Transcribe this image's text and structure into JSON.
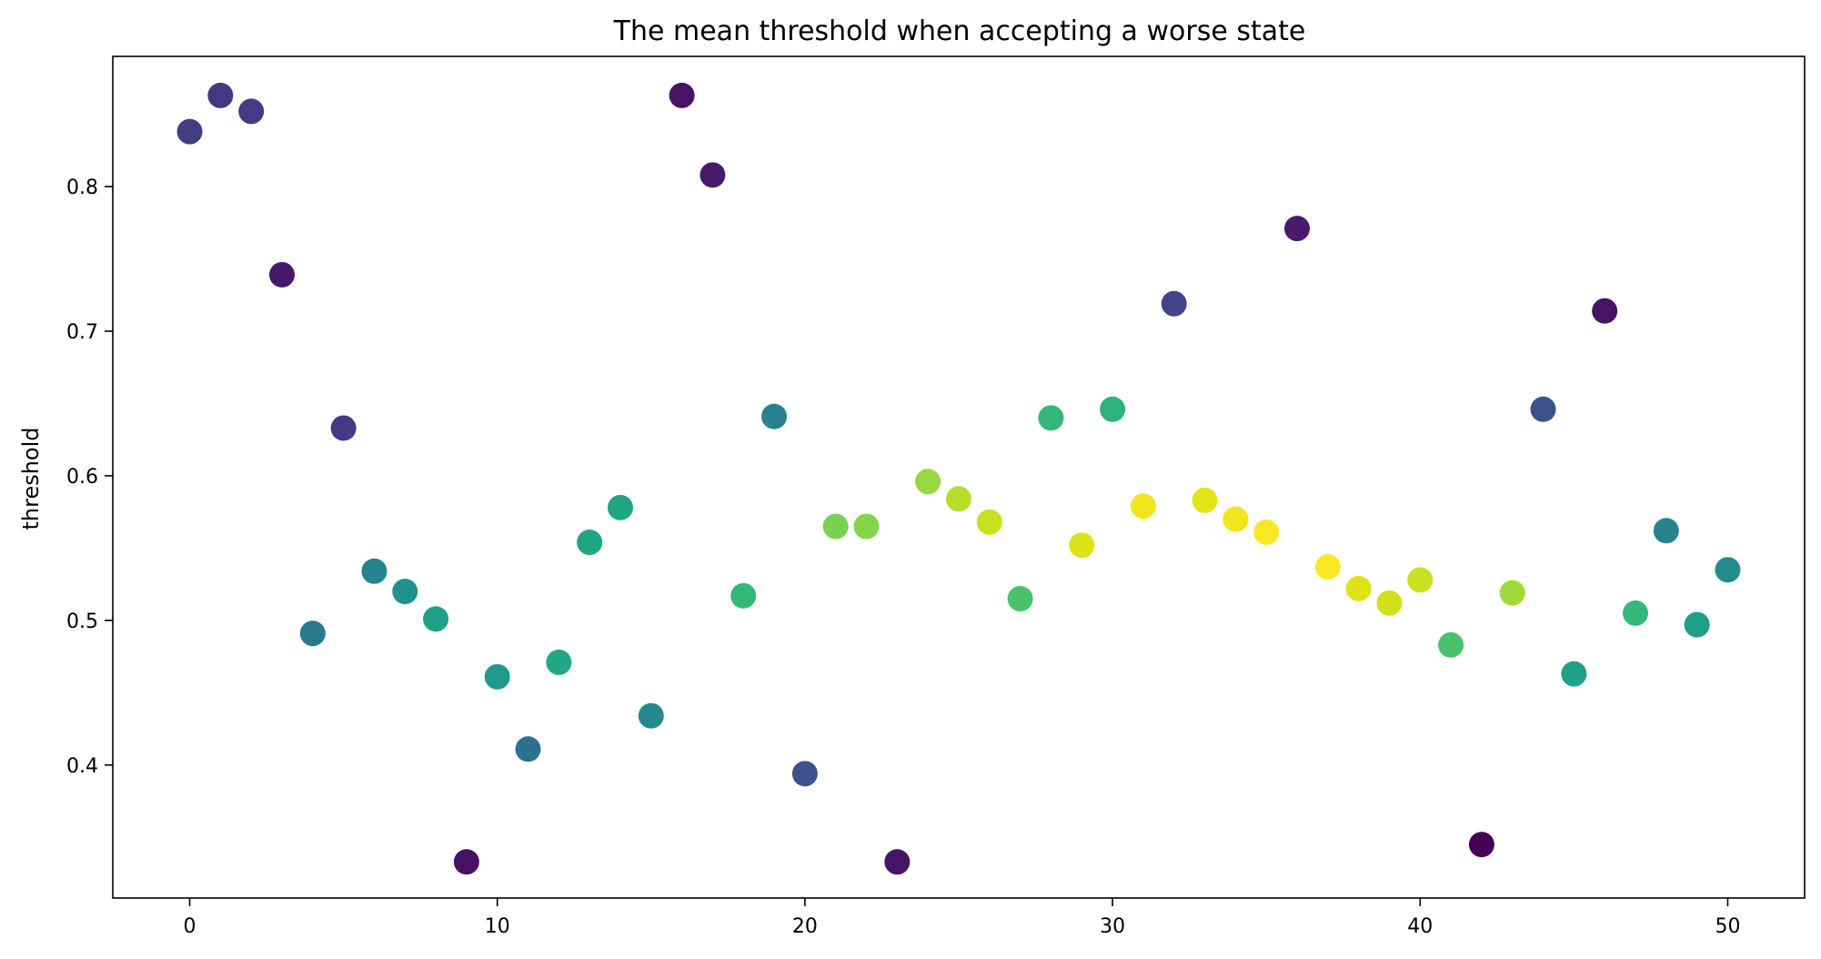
{
  "chart_data": {
    "type": "scatter",
    "title": "The mean threshold when accepting a worse state",
    "xlabel": "",
    "ylabel": "threshold",
    "xlim": [
      -2.5,
      52.5
    ],
    "ylim": [
      0.308,
      0.89
    ],
    "xticks": [
      0,
      10,
      20,
      30,
      40,
      50
    ],
    "yticks": [
      0.4,
      0.5,
      0.6,
      0.7,
      0.8
    ],
    "xtick_labels": [
      "0",
      "10",
      "20",
      "30",
      "40",
      "50"
    ],
    "ytick_labels": [
      "0.4",
      "0.5",
      "0.6",
      "0.7",
      "0.8"
    ],
    "grid": false,
    "colormap": "viridis",
    "color_encoding": "color encodes closeness of y to 0.58 (yellow = close, purple = far)",
    "points": [
      {
        "x": 0,
        "y": 0.838,
        "color": "#433d84"
      },
      {
        "x": 1,
        "y": 0.863,
        "color": "#453781"
      },
      {
        "x": 2,
        "y": 0.852,
        "color": "#443b84"
      },
      {
        "x": 3,
        "y": 0.739,
        "color": "#48186a"
      },
      {
        "x": 4,
        "y": 0.491,
        "color": "#2a788e"
      },
      {
        "x": 5,
        "y": 0.633,
        "color": "#443983"
      },
      {
        "x": 6,
        "y": 0.534,
        "color": "#25848e"
      },
      {
        "x": 7,
        "y": 0.52,
        "color": "#21918c"
      },
      {
        "x": 8,
        "y": 0.501,
        "color": "#1fa188"
      },
      {
        "x": 9,
        "y": 0.333,
        "color": "#471164"
      },
      {
        "x": 10,
        "y": 0.461,
        "color": "#1f9a8a"
      },
      {
        "x": 11,
        "y": 0.411,
        "color": "#2c728e"
      },
      {
        "x": 12,
        "y": 0.471,
        "color": "#22a884"
      },
      {
        "x": 13,
        "y": 0.554,
        "color": "#21a685"
      },
      {
        "x": 14,
        "y": 0.578,
        "color": "#20a486"
      },
      {
        "x": 15,
        "y": 0.434,
        "color": "#23898e"
      },
      {
        "x": 16,
        "y": 0.863,
        "color": "#471365"
      },
      {
        "x": 17,
        "y": 0.808,
        "color": "#481a6c"
      },
      {
        "x": 18,
        "y": 0.517,
        "color": "#35b779"
      },
      {
        "x": 19,
        "y": 0.641,
        "color": "#26828e"
      },
      {
        "x": 20,
        "y": 0.394,
        "color": "#3b528b"
      },
      {
        "x": 21,
        "y": 0.565,
        "color": "#7ad151"
      },
      {
        "x": 22,
        "y": 0.565,
        "color": "#86d549"
      },
      {
        "x": 23,
        "y": 0.333,
        "color": "#471365"
      },
      {
        "x": 24,
        "y": 0.596,
        "color": "#95d840"
      },
      {
        "x": 25,
        "y": 0.584,
        "color": "#b5de2b"
      },
      {
        "x": 26,
        "y": 0.568,
        "color": "#c8e020"
      },
      {
        "x": 27,
        "y": 0.515,
        "color": "#4ac16d"
      },
      {
        "x": 28,
        "y": 0.64,
        "color": "#35b779"
      },
      {
        "x": 29,
        "y": 0.552,
        "color": "#dde318"
      },
      {
        "x": 30,
        "y": 0.646,
        "color": "#2db27d"
      },
      {
        "x": 31,
        "y": 0.579,
        "color": "#f1e51d"
      },
      {
        "x": 32,
        "y": 0.719,
        "color": "#414487"
      },
      {
        "x": 33,
        "y": 0.583,
        "color": "#e2e418"
      },
      {
        "x": 34,
        "y": 0.57,
        "color": "#f1e51d"
      },
      {
        "x": 35,
        "y": 0.561,
        "color": "#fde725"
      },
      {
        "x": 36,
        "y": 0.771,
        "color": "#481a6c"
      },
      {
        "x": 37,
        "y": 0.537,
        "color": "#fde725"
      },
      {
        "x": 38,
        "y": 0.522,
        "color": "#dde318"
      },
      {
        "x": 39,
        "y": 0.512,
        "color": "#d0e11c"
      },
      {
        "x": 40,
        "y": 0.528,
        "color": "#c8e020"
      },
      {
        "x": 41,
        "y": 0.483,
        "color": "#4ac16d"
      },
      {
        "x": 42,
        "y": 0.345,
        "color": "#440154"
      },
      {
        "x": 43,
        "y": 0.519,
        "color": "#a0da39"
      },
      {
        "x": 44,
        "y": 0.646,
        "color": "#3b528b"
      },
      {
        "x": 45,
        "y": 0.463,
        "color": "#1fa088"
      },
      {
        "x": 46,
        "y": 0.714,
        "color": "#471365"
      },
      {
        "x": 47,
        "y": 0.505,
        "color": "#35b779"
      },
      {
        "x": 48,
        "y": 0.562,
        "color": "#25858e"
      },
      {
        "x": 49,
        "y": 0.497,
        "color": "#1f9e89"
      },
      {
        "x": 50,
        "y": 0.535,
        "color": "#238a8d"
      }
    ]
  }
}
